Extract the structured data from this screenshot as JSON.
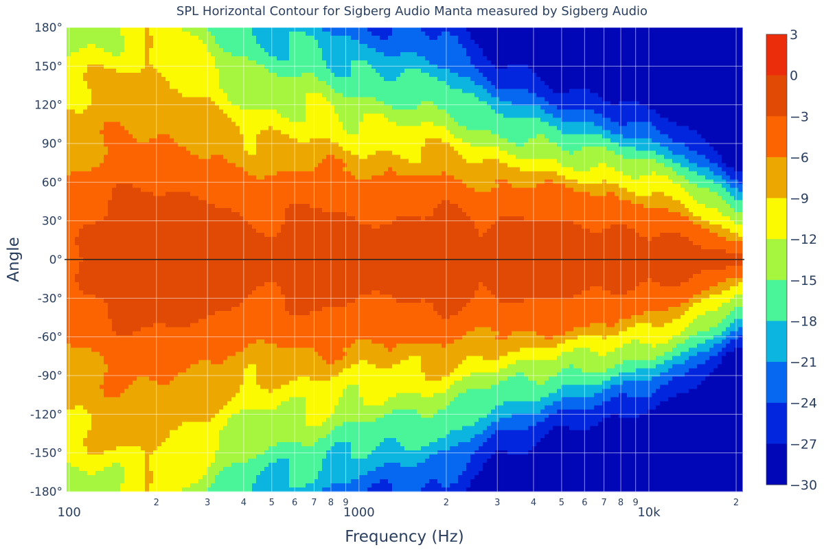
{
  "chart_data": {
    "type": "contour",
    "title": "SPL Horizontal Contour for Sigberg Audio Manta measured by Sigberg Audio",
    "xlabel": "Frequency (Hz)",
    "ylabel": "Angle",
    "x_scale": "log",
    "xlim": [
      98,
      21000
    ],
    "ylim": [
      -180,
      180
    ],
    "grid": true,
    "x_major_ticks": [
      {
        "value": 100,
        "label": "100"
      },
      {
        "value": 1000,
        "label": "1000"
      },
      {
        "value": 10000,
        "label": "10k"
      }
    ],
    "x_minor_ticks": [
      {
        "value": 200,
        "label": "2"
      },
      {
        "value": 300,
        "label": "3"
      },
      {
        "value": 400,
        "label": "4"
      },
      {
        "value": 500,
        "label": "5"
      },
      {
        "value": 600,
        "label": "6"
      },
      {
        "value": 700,
        "label": "7"
      },
      {
        "value": 800,
        "label": "8"
      },
      {
        "value": 900,
        "label": "9"
      },
      {
        "value": 2000,
        "label": "2"
      },
      {
        "value": 3000,
        "label": "3"
      },
      {
        "value": 4000,
        "label": "4"
      },
      {
        "value": 5000,
        "label": "5"
      },
      {
        "value": 6000,
        "label": "6"
      },
      {
        "value": 7000,
        "label": "7"
      },
      {
        "value": 8000,
        "label": "8"
      },
      {
        "value": 9000,
        "label": "9"
      },
      {
        "value": 20000,
        "label": "2"
      }
    ],
    "y_ticks": [
      {
        "value": 180,
        "label": "180°"
      },
      {
        "value": 150,
        "label": "150°"
      },
      {
        "value": 120,
        "label": "120°"
      },
      {
        "value": 90,
        "label": "90°"
      },
      {
        "value": 60,
        "label": "60°"
      },
      {
        "value": 30,
        "label": "30°"
      },
      {
        "value": 0,
        "label": "0°"
      },
      {
        "value": -30,
        "label": "-30°"
      },
      {
        "value": -60,
        "label": "-60°"
      },
      {
        "value": -90,
        "label": "-90°"
      },
      {
        "value": -120,
        "label": "-120°"
      },
      {
        "value": -150,
        "label": "-150°"
      },
      {
        "value": -180,
        "label": "-180°"
      }
    ],
    "colorbar": {
      "min": -30,
      "max": 3,
      "step": 3,
      "tick_labels": [
        {
          "value": 3,
          "label": "3"
        },
        {
          "value": 0,
          "label": "0"
        },
        {
          "value": -3,
          "label": "−3"
        },
        {
          "value": -6,
          "label": "−6"
        },
        {
          "value": -9,
          "label": "−9"
        },
        {
          "value": -12,
          "label": "−12"
        },
        {
          "value": -15,
          "label": "−15"
        },
        {
          "value": -18,
          "label": "−18"
        },
        {
          "value": -21,
          "label": "−21"
        },
        {
          "value": -24,
          "label": "−24"
        },
        {
          "value": -27,
          "label": "−27"
        },
        {
          "value": -30,
          "label": "−30"
        }
      ],
      "band_colors": [
        {
          "from": 0,
          "to": 3,
          "color": "#ec2d0c"
        },
        {
          "from": -3,
          "to": 0,
          "color": "#e04a04"
        },
        {
          "from": -6,
          "to": -3,
          "color": "#fb6400"
        },
        {
          "from": -9,
          "to": -6,
          "color": "#eca800"
        },
        {
          "from": -12,
          "to": -9,
          "color": "#fbfa00"
        },
        {
          "from": -15,
          "to": -12,
          "color": "#a6f53e"
        },
        {
          "from": -18,
          "to": -15,
          "color": "#4af59a"
        },
        {
          "from": -21,
          "to": -18,
          "color": "#0cb4e0"
        },
        {
          "from": -24,
          "to": -21,
          "color": "#0667f0"
        },
        {
          "from": -27,
          "to": -24,
          "color": "#0226de"
        },
        {
          "from": -30,
          "to": -27,
          "color": "#0106b6"
        }
      ]
    },
    "contour_model": {
      "description_free": true,
      "beam_halfwidth_deg": [
        {
          "freq": 100,
          "w": 80
        },
        {
          "freq": 150,
          "w": 88
        },
        {
          "freq": 200,
          "w": 84
        },
        {
          "freq": 300,
          "w": 78
        },
        {
          "freq": 500,
          "w": 74
        },
        {
          "freq": 1000,
          "w": 72
        },
        {
          "freq": 2000,
          "w": 66
        },
        {
          "freq": 3000,
          "w": 60
        },
        {
          "freq": 5000,
          "w": 54
        },
        {
          "freq": 8000,
          "w": 50
        },
        {
          "freq": 10000,
          "w": 46
        },
        {
          "freq": 13000,
          "w": 40
        },
        {
          "freq": 15000,
          "w": 30
        },
        {
          "freq": 18000,
          "w": 20
        },
        {
          "freq": 20000,
          "w": 16
        }
      ],
      "rolloff_db_per_deg": [
        {
          "freq": 100,
          "k": 0.03
        },
        {
          "freq": 200,
          "k": 0.05
        },
        {
          "freq": 400,
          "k": 0.11
        },
        {
          "freq": 700,
          "k": 0.13
        },
        {
          "freq": 1000,
          "k": 0.15
        },
        {
          "freq": 2000,
          "k": 0.17
        },
        {
          "freq": 3000,
          "k": 0.22
        },
        {
          "freq": 5000,
          "k": 0.27
        },
        {
          "freq": 10000,
          "k": 0.3
        },
        {
          "freq": 20000,
          "k": 0.34
        }
      ],
      "on_axis_db": [
        {
          "freq": 100,
          "db": -3.5
        },
        {
          "freq": 150,
          "db": -1.2
        },
        {
          "freq": 300,
          "db": -1.0
        },
        {
          "freq": 450,
          "db": -2.6
        },
        {
          "freq": 700,
          "db": -1.6
        },
        {
          "freq": 1000,
          "db": -2.6
        },
        {
          "freq": 2000,
          "db": -1.3
        },
        {
          "freq": 2600,
          "db": -2.4
        },
        {
          "freq": 4000,
          "db": -1.4
        },
        {
          "freq": 6000,
          "db": -1.6
        },
        {
          "freq": 8000,
          "db": -2.0
        },
        {
          "freq": 12000,
          "db": -2.4
        },
        {
          "freq": 17000,
          "db": -2.6
        },
        {
          "freq": 20000,
          "db": -3.2
        }
      ]
    }
  }
}
